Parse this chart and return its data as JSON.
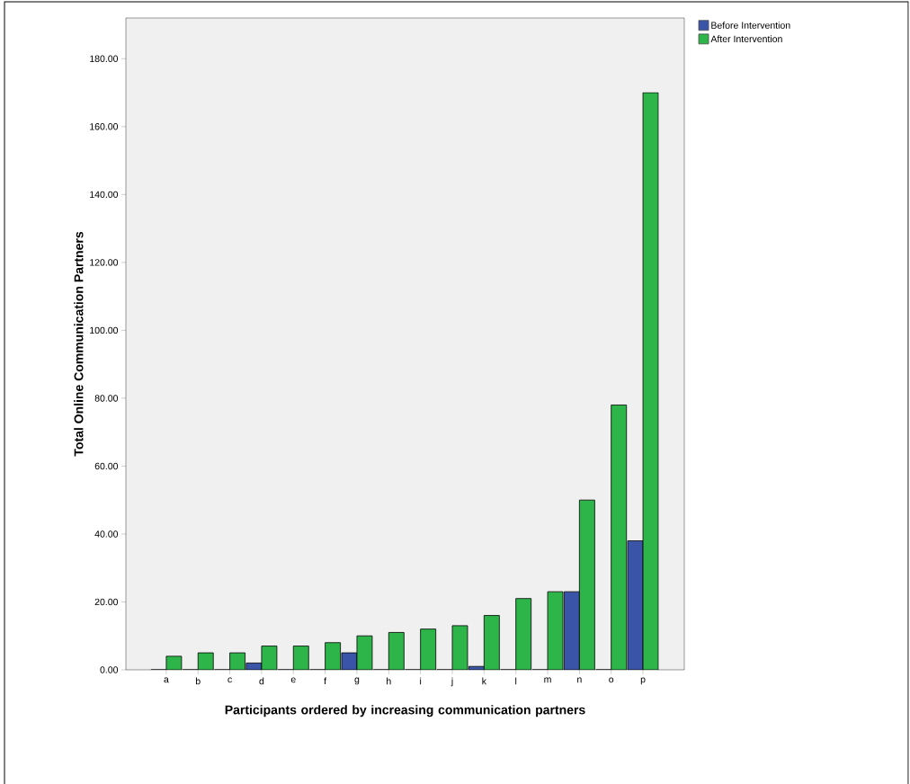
{
  "chart_data": {
    "type": "bar",
    "xlabel": "Participants ordered by increasing communication partners",
    "ylabel": "Total Online Communication Partners",
    "categories": [
      "a",
      "b",
      "c",
      "d",
      "e",
      "f",
      "g",
      "h",
      "i",
      "j",
      "k",
      "l",
      "m",
      "n",
      "o",
      "p"
    ],
    "series": [
      {
        "name": "Before Intervention",
        "color": "#3a55a8",
        "values": [
          0,
          0,
          0,
          2,
          0,
          0,
          5,
          0,
          0,
          0,
          1,
          0,
          0,
          23,
          0,
          38
        ]
      },
      {
        "name": "After Intervention",
        "color": "#2eb54a",
        "values": [
          4,
          5,
          5,
          7,
          7,
          8,
          10,
          11,
          12,
          13,
          16,
          21,
          23,
          50,
          78,
          170
        ]
      }
    ],
    "ylim": [
      0,
      192
    ],
    "yticks": [
      {
        "value": 0,
        "label": "0.00"
      },
      {
        "value": 20,
        "label": "20.00"
      },
      {
        "value": 40,
        "label": "40.00"
      },
      {
        "value": 60,
        "label": "60.00"
      },
      {
        "value": 80,
        "label": "80.00"
      },
      {
        "value": 100,
        "label": "100.00"
      },
      {
        "value": 120,
        "label": "120.00"
      },
      {
        "value": 140,
        "label": "140.00"
      },
      {
        "value": 160,
        "label": "160.00"
      },
      {
        "value": 180,
        "label": "180.00"
      }
    ],
    "legend": "top right"
  }
}
